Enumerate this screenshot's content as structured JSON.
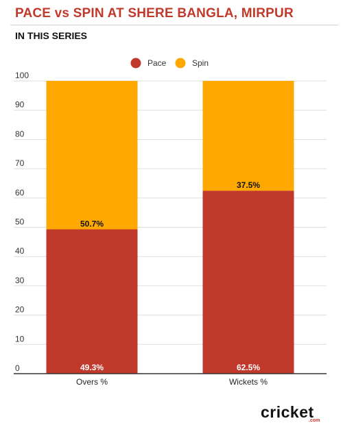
{
  "title": "PACE vs SPIN AT SHERE BANGLA, MIRPUR",
  "subtitle": "IN THIS SERIES",
  "brand": {
    "word": "cricket",
    "suffix": ".com"
  },
  "chart_data": {
    "type": "bar",
    "stacked": true,
    "categories": [
      "Overs %",
      "Wickets %"
    ],
    "series": [
      {
        "name": "Pace",
        "color": "#c0392b",
        "values": [
          49.3,
          62.5
        ],
        "labels": [
          "49.3%",
          "62.5%"
        ]
      },
      {
        "name": "Spin",
        "color": "#ffa800",
        "values": [
          50.7,
          37.5
        ],
        "labels": [
          "50.7%",
          "37.5%"
        ]
      }
    ],
    "ylim": [
      0,
      100
    ],
    "yticks": [
      "0",
      "10",
      "20",
      "30",
      "40",
      "50",
      "60",
      "70",
      "80",
      "90",
      "100"
    ],
    "grid": true,
    "legend": "top-center"
  }
}
